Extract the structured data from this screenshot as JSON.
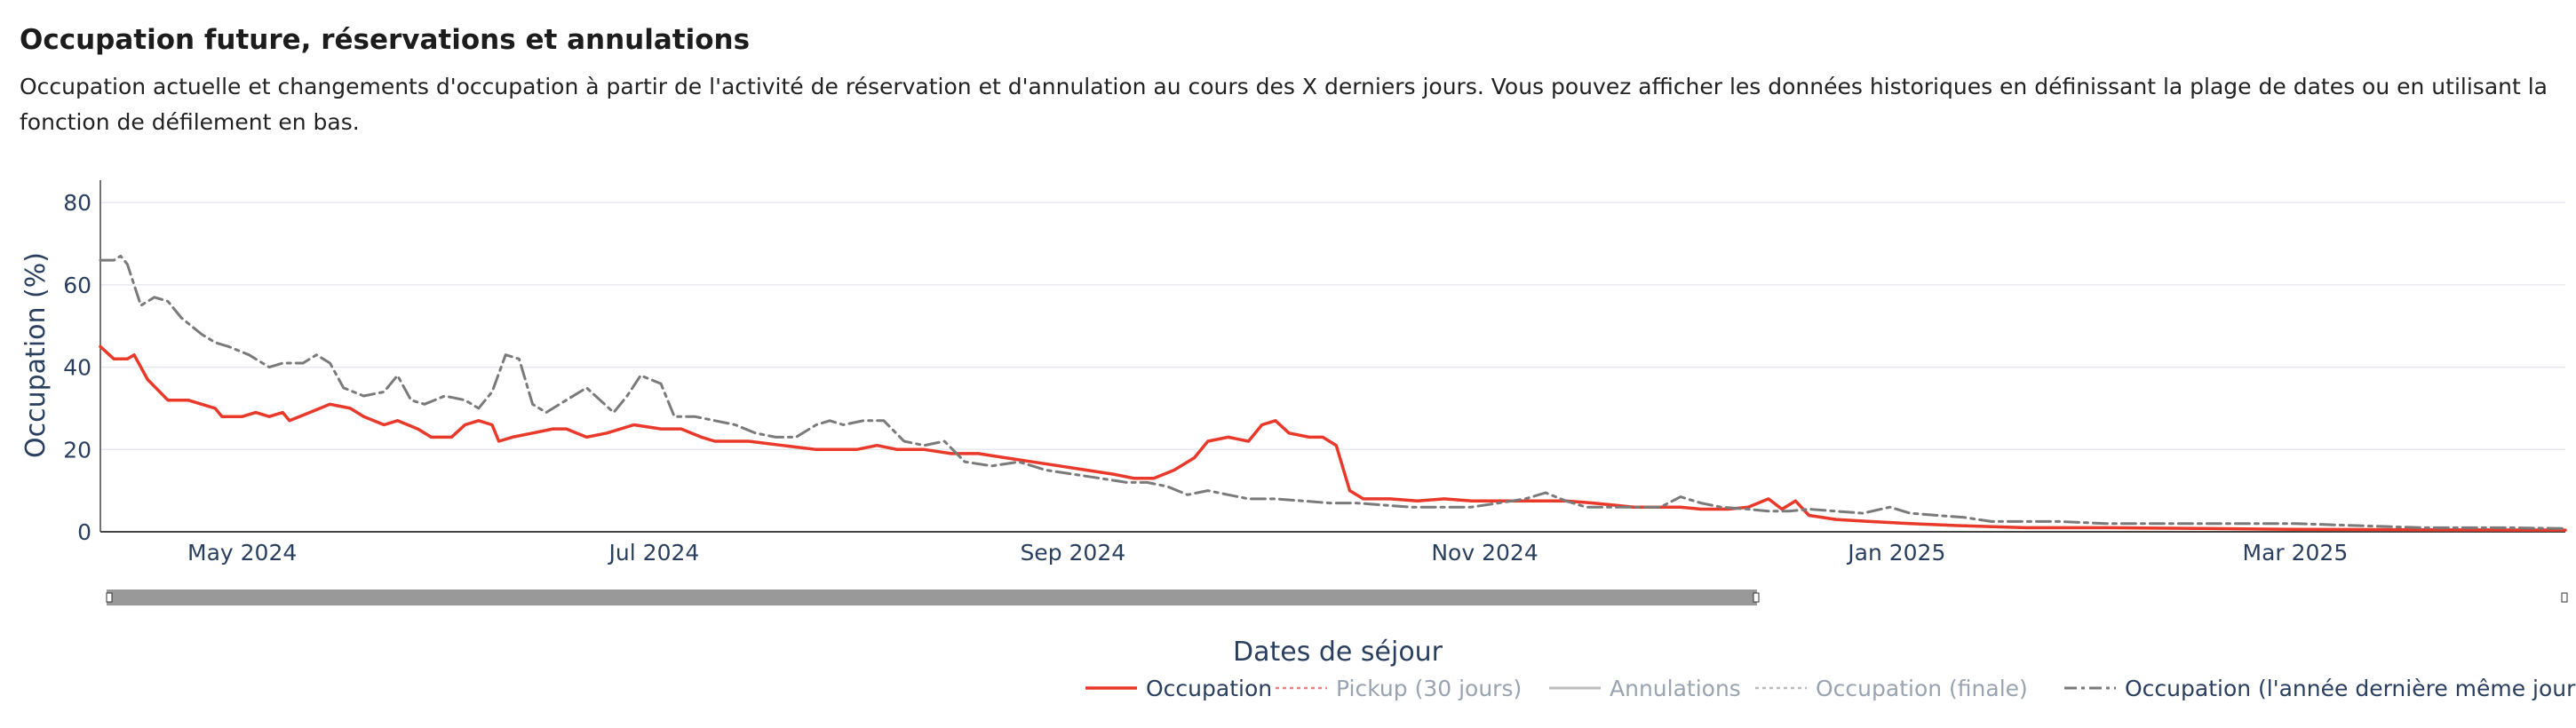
{
  "header": {
    "title": "Occupation future, réservations et annulations",
    "description": "Occupation actuelle et changements d'occupation à partir de l'activité de réservation et d'annulation au cours des X derniers jours. Vous pouvez afficher les données historiques en définissant la plage de dates ou en utilisant la fonction de défilement en bas."
  },
  "colors": {
    "occupation": "#e8392a",
    "last_year": "#7a7a7a",
    "pickup": "#f08080",
    "annulations": "#bdbdbd",
    "finale": "#bdbdbd",
    "axis_text": "#2a3f5f",
    "grid": "#e6e9ef",
    "rangeslider": "#999999"
  },
  "chart_data": {
    "type": "line",
    "xlabel": "Dates de séjour",
    "ylabel": "Occupation (%)",
    "ylim": [
      0,
      85
    ],
    "xlim": [
      "2024-04-10",
      "2025-04-10"
    ],
    "y_ticks": [
      0,
      20,
      40,
      60,
      80
    ],
    "x_ticks": [
      {
        "date": "2024-05-01",
        "label": "May 2024"
      },
      {
        "date": "2024-07-01",
        "label": "Jul 2024"
      },
      {
        "date": "2024-09-01",
        "label": "Sep 2024"
      },
      {
        "date": "2024-11-01",
        "label": "Nov 2024"
      },
      {
        "date": "2025-01-01",
        "label": "Jan 2025"
      },
      {
        "date": "2025-03-01",
        "label": "Mar 2025"
      }
    ],
    "grid": true,
    "legend_position": "bottom-right",
    "legend": [
      {
        "name": "Occupation",
        "style": "solid",
        "active": true
      },
      {
        "name": "Pickup (30 jours)",
        "style": "dot",
        "active": false
      },
      {
        "name": "Annulations",
        "style": "solid",
        "active": false
      },
      {
        "name": "Occupation (finale)",
        "style": "dot",
        "active": false
      },
      {
        "name": "Occupation (l'année dernière même jour)",
        "style": "dashdot",
        "active": true
      }
    ],
    "series": [
      {
        "name": "Occupation",
        "points": [
          [
            "2024-04-10",
            45
          ],
          [
            "2024-04-12",
            42
          ],
          [
            "2024-04-14",
            42
          ],
          [
            "2024-04-15",
            43
          ],
          [
            "2024-04-17",
            37
          ],
          [
            "2024-04-20",
            32
          ],
          [
            "2024-04-23",
            32
          ],
          [
            "2024-04-25",
            31
          ],
          [
            "2024-04-27",
            30
          ],
          [
            "2024-04-28",
            28
          ],
          [
            "2024-05-01",
            28
          ],
          [
            "2024-05-03",
            29
          ],
          [
            "2024-05-05",
            28
          ],
          [
            "2024-05-07",
            29
          ],
          [
            "2024-05-08",
            27
          ],
          [
            "2024-05-11",
            29
          ],
          [
            "2024-05-14",
            31
          ],
          [
            "2024-05-17",
            30
          ],
          [
            "2024-05-19",
            28
          ],
          [
            "2024-05-22",
            26
          ],
          [
            "2024-05-24",
            27
          ],
          [
            "2024-05-27",
            25
          ],
          [
            "2024-05-29",
            23
          ],
          [
            "2024-06-01",
            23
          ],
          [
            "2024-06-03",
            26
          ],
          [
            "2024-06-05",
            27
          ],
          [
            "2024-06-07",
            26
          ],
          [
            "2024-06-08",
            22
          ],
          [
            "2024-06-10",
            23
          ],
          [
            "2024-06-13",
            24
          ],
          [
            "2024-06-16",
            25
          ],
          [
            "2024-06-18",
            25
          ],
          [
            "2024-06-21",
            23
          ],
          [
            "2024-06-24",
            24
          ],
          [
            "2024-06-28",
            26
          ],
          [
            "2024-07-02",
            25
          ],
          [
            "2024-07-05",
            25
          ],
          [
            "2024-07-08",
            23
          ],
          [
            "2024-07-10",
            22
          ],
          [
            "2024-07-15",
            22
          ],
          [
            "2024-07-20",
            21
          ],
          [
            "2024-07-25",
            20
          ],
          [
            "2024-07-28",
            20
          ],
          [
            "2024-07-31",
            20
          ],
          [
            "2024-08-03",
            21
          ],
          [
            "2024-08-06",
            20
          ],
          [
            "2024-08-10",
            20
          ],
          [
            "2024-08-14",
            19
          ],
          [
            "2024-08-18",
            19
          ],
          [
            "2024-08-22",
            18
          ],
          [
            "2024-08-26",
            17
          ],
          [
            "2024-08-30",
            16
          ],
          [
            "2024-09-03",
            15
          ],
          [
            "2024-09-07",
            14
          ],
          [
            "2024-09-10",
            13
          ],
          [
            "2024-09-13",
            13
          ],
          [
            "2024-09-16",
            15
          ],
          [
            "2024-09-19",
            18
          ],
          [
            "2024-09-21",
            22
          ],
          [
            "2024-09-24",
            23
          ],
          [
            "2024-09-27",
            22
          ],
          [
            "2024-09-29",
            26
          ],
          [
            "2024-10-01",
            27
          ],
          [
            "2024-10-03",
            24
          ],
          [
            "2024-10-06",
            23
          ],
          [
            "2024-10-08",
            23
          ],
          [
            "2024-10-10",
            21
          ],
          [
            "2024-10-12",
            10
          ],
          [
            "2024-10-14",
            8
          ],
          [
            "2024-10-18",
            8
          ],
          [
            "2024-10-22",
            7.5
          ],
          [
            "2024-10-26",
            8
          ],
          [
            "2024-10-30",
            7.5
          ],
          [
            "2024-11-03",
            7.5
          ],
          [
            "2024-11-07",
            7.5
          ],
          [
            "2024-11-10",
            7.5
          ],
          [
            "2024-11-13",
            7.5
          ],
          [
            "2024-11-17",
            7
          ],
          [
            "2024-11-20",
            6.5
          ],
          [
            "2024-11-23",
            6
          ],
          [
            "2024-11-26",
            6
          ],
          [
            "2024-11-30",
            6
          ],
          [
            "2024-12-03",
            5.5
          ],
          [
            "2024-12-07",
            5.5
          ],
          [
            "2024-12-10",
            6
          ],
          [
            "2024-12-13",
            8
          ],
          [
            "2024-12-15",
            5.5
          ],
          [
            "2024-12-17",
            7.5
          ],
          [
            "2024-12-19",
            4
          ],
          [
            "2024-12-23",
            3
          ],
          [
            "2024-12-28",
            2.5
          ],
          [
            "2025-01-03",
            2
          ],
          [
            "2025-01-10",
            1.5
          ],
          [
            "2025-01-20",
            1
          ],
          [
            "2025-02-01",
            1
          ],
          [
            "2025-02-15",
            0.8
          ],
          [
            "2025-03-01",
            0.6
          ],
          [
            "2025-03-20",
            0.5
          ],
          [
            "2025-04-10",
            0.4
          ]
        ]
      },
      {
        "name": "Occupation (l'année dernière même jour)",
        "points": [
          [
            "2024-04-10",
            66
          ],
          [
            "2024-04-12",
            66
          ],
          [
            "2024-04-13",
            67
          ],
          [
            "2024-04-14",
            65
          ],
          [
            "2024-04-16",
            55
          ],
          [
            "2024-04-18",
            57
          ],
          [
            "2024-04-20",
            56
          ],
          [
            "2024-04-22",
            52
          ],
          [
            "2024-04-25",
            48
          ],
          [
            "2024-04-27",
            46
          ],
          [
            "2024-04-29",
            45
          ],
          [
            "2024-05-02",
            43
          ],
          [
            "2024-05-05",
            40
          ],
          [
            "2024-05-07",
            41
          ],
          [
            "2024-05-10",
            41
          ],
          [
            "2024-05-12",
            43
          ],
          [
            "2024-05-14",
            41
          ],
          [
            "2024-05-16",
            35
          ],
          [
            "2024-05-19",
            33
          ],
          [
            "2024-05-22",
            34
          ],
          [
            "2024-05-24",
            38
          ],
          [
            "2024-05-26",
            32
          ],
          [
            "2024-05-28",
            31
          ],
          [
            "2024-05-31",
            33
          ],
          [
            "2024-06-03",
            32
          ],
          [
            "2024-06-05",
            30
          ],
          [
            "2024-06-07",
            34
          ],
          [
            "2024-06-09",
            43
          ],
          [
            "2024-06-11",
            42
          ],
          [
            "2024-06-13",
            31
          ],
          [
            "2024-06-15",
            29
          ],
          [
            "2024-06-18",
            32
          ],
          [
            "2024-06-21",
            35
          ],
          [
            "2024-06-23",
            32
          ],
          [
            "2024-06-25",
            29
          ],
          [
            "2024-06-27",
            33
          ],
          [
            "2024-06-29",
            38
          ],
          [
            "2024-07-02",
            36
          ],
          [
            "2024-07-04",
            28
          ],
          [
            "2024-07-07",
            28
          ],
          [
            "2024-07-10",
            27
          ],
          [
            "2024-07-13",
            26
          ],
          [
            "2024-07-16",
            24
          ],
          [
            "2024-07-19",
            23
          ],
          [
            "2024-07-22",
            23
          ],
          [
            "2024-07-25",
            26
          ],
          [
            "2024-07-27",
            27
          ],
          [
            "2024-07-29",
            26
          ],
          [
            "2024-08-01",
            27
          ],
          [
            "2024-08-04",
            27
          ],
          [
            "2024-08-07",
            22
          ],
          [
            "2024-08-10",
            21
          ],
          [
            "2024-08-13",
            22
          ],
          [
            "2024-08-16",
            17
          ],
          [
            "2024-08-20",
            16
          ],
          [
            "2024-08-24",
            17
          ],
          [
            "2024-08-28",
            15
          ],
          [
            "2024-09-01",
            14
          ],
          [
            "2024-09-05",
            13
          ],
          [
            "2024-09-09",
            12
          ],
          [
            "2024-09-12",
            12
          ],
          [
            "2024-09-15",
            11
          ],
          [
            "2024-09-18",
            9
          ],
          [
            "2024-09-21",
            10
          ],
          [
            "2024-09-24",
            9
          ],
          [
            "2024-09-27",
            8
          ],
          [
            "2024-10-01",
            8
          ],
          [
            "2024-10-05",
            7.5
          ],
          [
            "2024-10-09",
            7
          ],
          [
            "2024-10-13",
            7
          ],
          [
            "2024-10-17",
            6.5
          ],
          [
            "2024-10-21",
            6
          ],
          [
            "2024-10-25",
            6
          ],
          [
            "2024-10-30",
            6
          ],
          [
            "2024-11-03",
            7
          ],
          [
            "2024-11-07",
            8
          ],
          [
            "2024-11-10",
            9.5
          ],
          [
            "2024-11-13",
            7.5
          ],
          [
            "2024-11-16",
            6
          ],
          [
            "2024-11-20",
            6
          ],
          [
            "2024-11-24",
            6
          ],
          [
            "2024-11-27",
            6
          ],
          [
            "2024-11-30",
            8.5
          ],
          [
            "2024-12-03",
            7
          ],
          [
            "2024-12-06",
            6
          ],
          [
            "2024-12-10",
            5.5
          ],
          [
            "2024-12-13",
            5
          ],
          [
            "2024-12-16",
            5
          ],
          [
            "2024-12-19",
            5.5
          ],
          [
            "2024-12-23",
            5
          ],
          [
            "2024-12-27",
            4.5
          ],
          [
            "2024-12-31",
            6
          ],
          [
            "2025-01-03",
            4.5
          ],
          [
            "2025-01-07",
            4
          ],
          [
            "2025-01-11",
            3.5
          ],
          [
            "2025-01-15",
            2.5
          ],
          [
            "2025-01-20",
            2.5
          ],
          [
            "2025-01-25",
            2.5
          ],
          [
            "2025-02-01",
            2
          ],
          [
            "2025-02-10",
            2
          ],
          [
            "2025-02-20",
            2
          ],
          [
            "2025-03-01",
            2
          ],
          [
            "2025-03-10",
            1.5
          ],
          [
            "2025-03-20",
            1
          ],
          [
            "2025-04-01",
            1
          ],
          [
            "2025-04-10",
            0.8
          ]
        ]
      }
    ]
  }
}
